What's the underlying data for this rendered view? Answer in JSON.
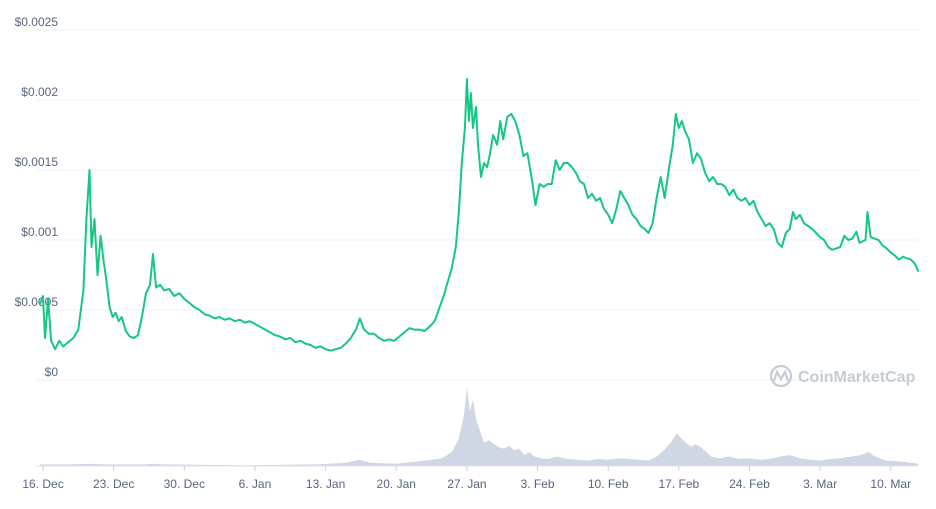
{
  "chart_data": {
    "type": "line",
    "title": "",
    "xlabel": "",
    "ylabel": "",
    "ylim": [
      0,
      0.0025
    ],
    "grid": true,
    "line_color": "#16c784",
    "volume_color": "#cfd6e4",
    "y_ticks": [
      "$0",
      "$0.0005",
      "$0.001",
      "$0.0015",
      "$0.002",
      "$0.0025"
    ],
    "x_ticks": [
      "16. Dec",
      "23. Dec",
      "30. Dec",
      "6. Jan",
      "13. Jan",
      "20. Jan",
      "27. Jan",
      "3. Feb",
      "10. Feb",
      "17. Feb",
      "24. Feb",
      "3. Mar",
      "10. Mar"
    ],
    "x_range_days": [
      -0.3,
      86.7
    ],
    "series": [
      {
        "values": [
          [
            -0.3,
            0.00054
          ],
          [
            0.0,
            0.0006
          ],
          [
            0.2,
            0.0003
          ],
          [
            0.5,
            0.00058
          ],
          [
            0.8,
            0.00028
          ],
          [
            1.2,
            0.00022
          ],
          [
            1.6,
            0.00028
          ],
          [
            2.0,
            0.00024
          ],
          [
            2.5,
            0.00027
          ],
          [
            3.0,
            0.0003
          ],
          [
            3.5,
            0.00036
          ],
          [
            4.0,
            0.00064
          ],
          [
            4.3,
            0.00115
          ],
          [
            4.6,
            0.0015
          ],
          [
            4.8,
            0.00095
          ],
          [
            5.1,
            0.00115
          ],
          [
            5.4,
            0.00075
          ],
          [
            5.7,
            0.00103
          ],
          [
            6.0,
            0.00085
          ],
          [
            6.3,
            0.0007
          ],
          [
            6.6,
            0.00052
          ],
          [
            6.9,
            0.00045
          ],
          [
            7.2,
            0.00048
          ],
          [
            7.5,
            0.00042
          ],
          [
            7.8,
            0.00045
          ],
          [
            8.2,
            0.00035
          ],
          [
            8.6,
            0.00031
          ],
          [
            9.0,
            0.0003
          ],
          [
            9.4,
            0.00032
          ],
          [
            9.8,
            0.00045
          ],
          [
            10.2,
            0.00062
          ],
          [
            10.6,
            0.00068
          ],
          [
            10.9,
            0.0009
          ],
          [
            11.2,
            0.00066
          ],
          [
            11.6,
            0.00068
          ],
          [
            12.0,
            0.00064
          ],
          [
            12.5,
            0.00065
          ],
          [
            13.0,
            0.0006
          ],
          [
            13.5,
            0.00062
          ],
          [
            14.0,
            0.00058
          ],
          [
            14.5,
            0.00055
          ],
          [
            15.0,
            0.00052
          ],
          [
            15.5,
            0.0005
          ],
          [
            16.0,
            0.00047
          ],
          [
            16.5,
            0.00046
          ],
          [
            17.0,
            0.00044
          ],
          [
            17.5,
            0.00045
          ],
          [
            18.0,
            0.00043
          ],
          [
            18.5,
            0.00044
          ],
          [
            19.0,
            0.00042
          ],
          [
            19.5,
            0.00043
          ],
          [
            20.0,
            0.00041
          ],
          [
            20.5,
            0.00042
          ],
          [
            21.0,
            0.0004
          ],
          [
            21.5,
            0.00038
          ],
          [
            22.0,
            0.00036
          ],
          [
            22.5,
            0.00034
          ],
          [
            23.0,
            0.00032
          ],
          [
            23.5,
            0.00031
          ],
          [
            24.0,
            0.00029
          ],
          [
            24.5,
            0.0003
          ],
          [
            25.0,
            0.00027
          ],
          [
            25.5,
            0.00028
          ],
          [
            26.0,
            0.00026
          ],
          [
            26.5,
            0.00025
          ],
          [
            27.0,
            0.00023
          ],
          [
            27.5,
            0.00024
          ],
          [
            28.0,
            0.00022
          ],
          [
            28.5,
            0.00021
          ],
          [
            29.0,
            0.00022
          ],
          [
            29.5,
            0.00023
          ],
          [
            30.0,
            0.00026
          ],
          [
            30.5,
            0.0003
          ],
          [
            31.0,
            0.00036
          ],
          [
            31.4,
            0.00044
          ],
          [
            31.8,
            0.00036
          ],
          [
            32.3,
            0.00033
          ],
          [
            32.8,
            0.00033
          ],
          [
            33.3,
            0.0003
          ],
          [
            33.8,
            0.00028
          ],
          [
            34.3,
            0.00029
          ],
          [
            34.8,
            0.00028
          ],
          [
            35.3,
            0.00031
          ],
          [
            35.8,
            0.00034
          ],
          [
            36.3,
            0.00037
          ],
          [
            36.8,
            0.00036
          ],
          [
            37.3,
            0.00036
          ],
          [
            37.8,
            0.00035
          ],
          [
            38.3,
            0.00038
          ],
          [
            38.8,
            0.00042
          ],
          [
            39.3,
            0.00052
          ],
          [
            39.7,
            0.0006
          ],
          [
            40.1,
            0.0007
          ],
          [
            40.5,
            0.0008
          ],
          [
            40.9,
            0.00095
          ],
          [
            41.2,
            0.0012
          ],
          [
            41.5,
            0.00155
          ],
          [
            41.8,
            0.0018
          ],
          [
            42.0,
            0.00215
          ],
          [
            42.2,
            0.00185
          ],
          [
            42.4,
            0.00205
          ],
          [
            42.6,
            0.0018
          ],
          [
            42.9,
            0.00195
          ],
          [
            43.1,
            0.00168
          ],
          [
            43.4,
            0.00145
          ],
          [
            43.7,
            0.00155
          ],
          [
            44.0,
            0.00152
          ],
          [
            44.3,
            0.00162
          ],
          [
            44.6,
            0.00175
          ],
          [
            45.0,
            0.00168
          ],
          [
            45.3,
            0.00185
          ],
          [
            45.6,
            0.00172
          ],
          [
            46.0,
            0.00188
          ],
          [
            46.4,
            0.0019
          ],
          [
            46.8,
            0.00185
          ],
          [
            47.2,
            0.00175
          ],
          [
            47.6,
            0.0016
          ],
          [
            48.0,
            0.00162
          ],
          [
            48.4,
            0.00145
          ],
          [
            48.8,
            0.00125
          ],
          [
            49.2,
            0.0014
          ],
          [
            49.6,
            0.00138
          ],
          [
            50.0,
            0.0014
          ],
          [
            50.4,
            0.0014
          ],
          [
            50.8,
            0.00157
          ],
          [
            51.2,
            0.0015
          ],
          [
            51.6,
            0.00155
          ],
          [
            52.0,
            0.00155
          ],
          [
            52.4,
            0.00152
          ],
          [
            52.8,
            0.00148
          ],
          [
            53.2,
            0.00142
          ],
          [
            53.6,
            0.0014
          ],
          [
            54.0,
            0.0013
          ],
          [
            54.4,
            0.00133
          ],
          [
            54.8,
            0.00128
          ],
          [
            55.2,
            0.0013
          ],
          [
            55.6,
            0.00122
          ],
          [
            56.0,
            0.00118
          ],
          [
            56.4,
            0.00112
          ],
          [
            56.8,
            0.00122
          ],
          [
            57.2,
            0.00135
          ],
          [
            57.6,
            0.0013
          ],
          [
            58.0,
            0.00125
          ],
          [
            58.4,
            0.00118
          ],
          [
            58.8,
            0.00115
          ],
          [
            59.2,
            0.0011
          ],
          [
            59.6,
            0.00108
          ],
          [
            60.0,
            0.00105
          ],
          [
            60.4,
            0.00112
          ],
          [
            60.8,
            0.0013
          ],
          [
            61.2,
            0.00145
          ],
          [
            61.6,
            0.0013
          ],
          [
            62.0,
            0.0015
          ],
          [
            62.4,
            0.00168
          ],
          [
            62.7,
            0.0019
          ],
          [
            63.0,
            0.0018
          ],
          [
            63.3,
            0.00185
          ],
          [
            63.6,
            0.00178
          ],
          [
            64.0,
            0.00172
          ],
          [
            64.4,
            0.00155
          ],
          [
            64.8,
            0.00162
          ],
          [
            65.2,
            0.00158
          ],
          [
            65.6,
            0.00148
          ],
          [
            66.0,
            0.00142
          ],
          [
            66.4,
            0.00145
          ],
          [
            66.8,
            0.0014
          ],
          [
            67.2,
            0.0014
          ],
          [
            67.6,
            0.00138
          ],
          [
            68.0,
            0.00132
          ],
          [
            68.4,
            0.00136
          ],
          [
            68.8,
            0.0013
          ],
          [
            69.2,
            0.00128
          ],
          [
            69.6,
            0.0013
          ],
          [
            70.0,
            0.00125
          ],
          [
            70.4,
            0.00128
          ],
          [
            70.8,
            0.0012
          ],
          [
            71.2,
            0.00115
          ],
          [
            71.6,
            0.0011
          ],
          [
            72.0,
            0.00112
          ],
          [
            72.4,
            0.00108
          ],
          [
            72.8,
            0.00098
          ],
          [
            73.2,
            0.00095
          ],
          [
            73.6,
            0.00105
          ],
          [
            74.0,
            0.00108
          ],
          [
            74.3,
            0.0012
          ],
          [
            74.6,
            0.00115
          ],
          [
            75.0,
            0.00118
          ],
          [
            75.4,
            0.00112
          ],
          [
            75.8,
            0.0011
          ],
          [
            76.2,
            0.00108
          ],
          [
            76.6,
            0.00105
          ],
          [
            77.0,
            0.00102
          ],
          [
            77.4,
            0.001
          ],
          [
            77.8,
            0.00095
          ],
          [
            78.2,
            0.00093
          ],
          [
            78.6,
            0.00094
          ],
          [
            79.0,
            0.00095
          ],
          [
            79.4,
            0.00103
          ],
          [
            79.8,
            0.001
          ],
          [
            80.2,
            0.00101
          ],
          [
            80.6,
            0.00106
          ],
          [
            80.9,
            0.00098
          ],
          [
            81.2,
            0.00099
          ],
          [
            81.5,
            0.001
          ],
          [
            81.7,
            0.0012
          ],
          [
            82.0,
            0.00102
          ],
          [
            82.4,
            0.00101
          ],
          [
            82.8,
            0.001
          ],
          [
            83.2,
            0.00096
          ],
          [
            83.6,
            0.00094
          ],
          [
            84.0,
            0.00091
          ],
          [
            84.4,
            0.00089
          ],
          [
            84.8,
            0.00086
          ],
          [
            85.2,
            0.00088
          ],
          [
            85.6,
            0.00087
          ],
          [
            86.0,
            0.00086
          ],
          [
            86.4,
            0.00083
          ],
          [
            86.7,
            0.00078
          ]
        ]
      }
    ],
    "volume_relative": [
      [
        -0.3,
        0.02
      ],
      [
        3.0,
        0.02
      ],
      [
        4.5,
        0.03
      ],
      [
        6.0,
        0.02
      ],
      [
        10.0,
        0.02
      ],
      [
        11.0,
        0.03
      ],
      [
        12.0,
        0.02
      ],
      [
        20.0,
        0.01
      ],
      [
        27.0,
        0.02
      ],
      [
        30.0,
        0.04
      ],
      [
        31.3,
        0.08
      ],
      [
        32.5,
        0.04
      ],
      [
        35.0,
        0.03
      ],
      [
        36.5,
        0.05
      ],
      [
        38.0,
        0.07
      ],
      [
        39.5,
        0.1
      ],
      [
        40.5,
        0.18
      ],
      [
        41.2,
        0.35
      ],
      [
        41.7,
        0.65
      ],
      [
        42.0,
        1.0
      ],
      [
        42.3,
        0.7
      ],
      [
        42.6,
        0.85
      ],
      [
        42.9,
        0.6
      ],
      [
        43.3,
        0.45
      ],
      [
        43.7,
        0.3
      ],
      [
        44.2,
        0.33
      ],
      [
        44.7,
        0.28
      ],
      [
        45.2,
        0.24
      ],
      [
        45.7,
        0.22
      ],
      [
        46.2,
        0.26
      ],
      [
        46.7,
        0.2
      ],
      [
        47.2,
        0.22
      ],
      [
        47.7,
        0.14
      ],
      [
        48.2,
        0.18
      ],
      [
        48.7,
        0.12
      ],
      [
        49.3,
        0.1
      ],
      [
        50.0,
        0.09
      ],
      [
        51.0,
        0.12
      ],
      [
        52.0,
        0.09
      ],
      [
        53.0,
        0.08
      ],
      [
        54.0,
        0.07
      ],
      [
        55.0,
        0.09
      ],
      [
        56.0,
        0.08
      ],
      [
        57.0,
        0.1
      ],
      [
        58.0,
        0.09
      ],
      [
        59.0,
        0.08
      ],
      [
        60.0,
        0.07
      ],
      [
        60.8,
        0.12
      ],
      [
        61.5,
        0.2
      ],
      [
        62.2,
        0.3
      ],
      [
        62.8,
        0.42
      ],
      [
        63.2,
        0.36
      ],
      [
        63.7,
        0.3
      ],
      [
        64.2,
        0.25
      ],
      [
        64.7,
        0.28
      ],
      [
        65.2,
        0.24
      ],
      [
        65.7,
        0.18
      ],
      [
        66.2,
        0.12
      ],
      [
        67.0,
        0.1
      ],
      [
        68.0,
        0.12
      ],
      [
        69.0,
        0.09
      ],
      [
        70.0,
        0.1
      ],
      [
        71.0,
        0.08
      ],
      [
        72.0,
        0.09
      ],
      [
        73.0,
        0.12
      ],
      [
        74.0,
        0.14
      ],
      [
        75.0,
        0.1
      ],
      [
        76.0,
        0.08
      ],
      [
        77.0,
        0.07
      ],
      [
        78.0,
        0.09
      ],
      [
        79.0,
        0.1
      ],
      [
        80.0,
        0.12
      ],
      [
        81.0,
        0.14
      ],
      [
        81.8,
        0.18
      ],
      [
        82.5,
        0.12
      ],
      [
        83.5,
        0.07
      ],
      [
        84.5,
        0.06
      ],
      [
        85.5,
        0.05
      ],
      [
        86.7,
        0.03
      ]
    ]
  },
  "watermark": {
    "text": "CoinMarketCap",
    "icon": "coinmarketcap-logo-icon"
  }
}
